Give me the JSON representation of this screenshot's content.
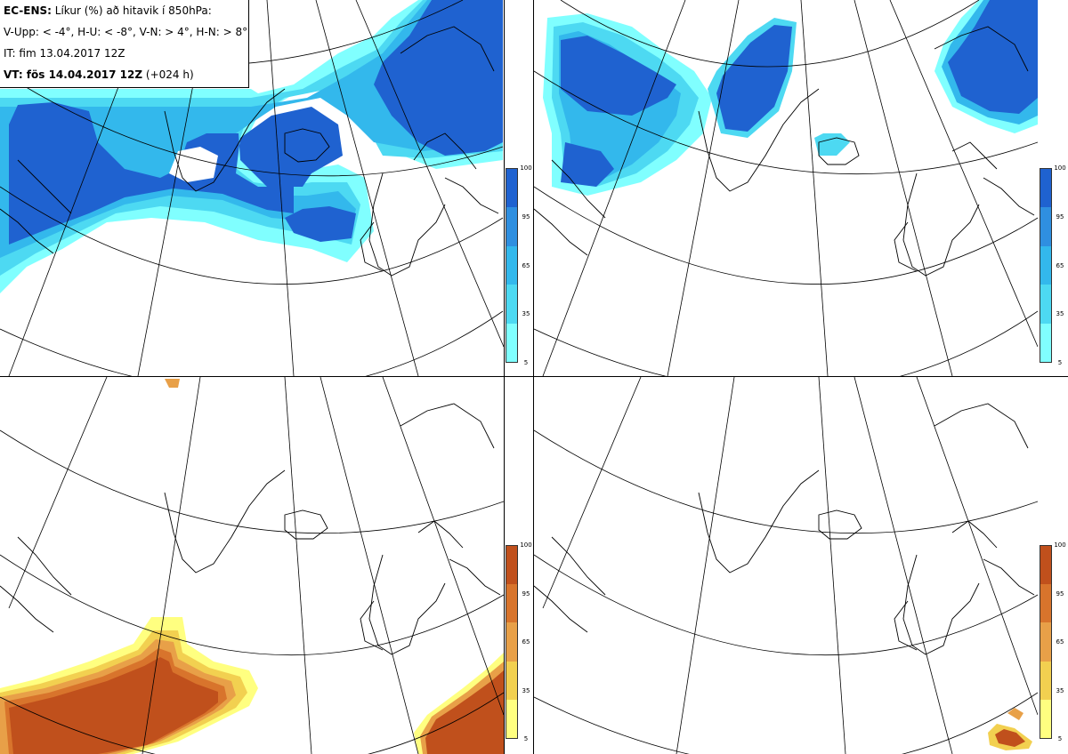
{
  "header": {
    "model_label": "EC-ENS:",
    "title": "Líkur (%) að hitavik í 850hPa:",
    "thresholds": "V-Upp: < -4°, H-U: < -8°, V-N: > 4°, H-N: > 8°",
    "init_time": "IT: fim 13.04.2017 12Z",
    "valid_label": "VT: fös 14.04.2017 12Z",
    "lead_time": "(+024 h)"
  },
  "colorbar": {
    "ticks": [
      "100",
      "95",
      "65",
      "35",
      "5"
    ],
    "cold_colors": [
      "#80ffff",
      "#4dd9f2",
      "#33b8ec",
      "#2f8fe0",
      "#1f62d0"
    ],
    "warm_colors": [
      "#ffff80",
      "#f2d050",
      "#e8a048",
      "#d8742c",
      "#c0501c"
    ]
  },
  "panels": {
    "top_left": "probability-cold-lt-minus4",
    "top_right": "probability-cold-lt-minus8",
    "bottom_left": "probability-warm-gt-4",
    "bottom_right": "probability-warm-gt-8"
  }
}
